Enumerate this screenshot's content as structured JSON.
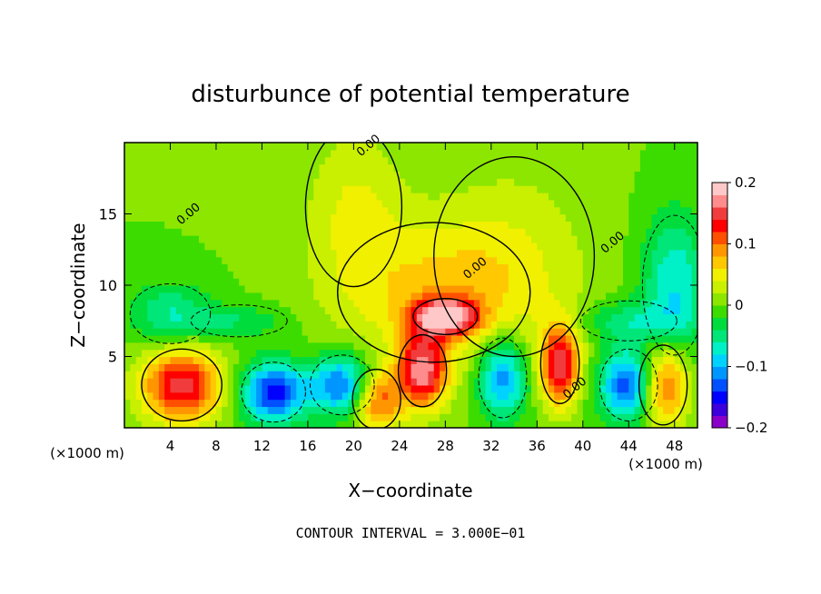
{
  "chart_data": {
    "type": "heatmap",
    "title": "disturbunce of potential temperature",
    "xlabel": "X−coordinate",
    "ylabel": "Z−coordinate",
    "x_unit": "(×1000 m)",
    "x_unit_right": "(×1000 m)",
    "x_ticks": [
      4,
      8,
      12,
      16,
      20,
      24,
      28,
      32,
      36,
      40,
      44,
      48
    ],
    "y_ticks": [
      5,
      10,
      15
    ],
    "xlim": [
      0,
      50
    ],
    "ylim": [
      0,
      20
    ],
    "colorbar": {
      "ticks": [
        0.2,
        0.1,
        0,
        -0.1,
        -0.2
      ],
      "tick_labels": [
        "0.2",
        "0.1",
        "0",
        "−0.1",
        "−0.2"
      ],
      "range": [
        -0.2,
        0.2
      ],
      "colors": [
        "#8a00c8",
        "#3c00dc",
        "#0000ff",
        "#0050ff",
        "#0096ff",
        "#00d2ff",
        "#00f0c8",
        "#00e678",
        "#00dc3c",
        "#3cdc00",
        "#8ce600",
        "#c8f000",
        "#f0f000",
        "#ffc800",
        "#ff9600",
        "#ff5000",
        "#ff0000",
        "#f03c3c",
        "#ff8c8c",
        "#ffc8c8"
      ]
    },
    "contour_labels": [
      {
        "text": "0.00",
        "x": 5.8,
        "z": 14.8
      },
      {
        "text": "0.00",
        "x": 30.8,
        "z": 11.0
      },
      {
        "text": "0.00",
        "x": 42.8,
        "z": 12.8
      },
      {
        "text": "0.00",
        "x": 39.5,
        "z": 2.6
      },
      {
        "text": "0.00",
        "x": 21.5,
        "z": 19.6
      }
    ],
    "field_features": [
      {
        "x": 28,
        "z": 7.8,
        "sx": 2.0,
        "sz": 0.9,
        "value": 0.17
      },
      {
        "x": 27,
        "z": 9.5,
        "sx": 6.0,
        "sz": 3.5,
        "value": 0.06
      },
      {
        "x": 20,
        "z": 15.5,
        "sx": 3.0,
        "sz": 4.0,
        "value": 0.04
      },
      {
        "x": 34,
        "z": 12.0,
        "sx": 5.0,
        "sz": 5.0,
        "value": 0.03
      },
      {
        "x": 48,
        "z": 10.0,
        "sx": 2.0,
        "sz": 3.5,
        "value": -0.08
      },
      {
        "x": 4,
        "z": 8.0,
        "sx": 2.5,
        "sz": 1.5,
        "value": -0.06
      },
      {
        "x": 44,
        "z": 7.5,
        "sx": 3.0,
        "sz": 1.0,
        "value": -0.05
      },
      {
        "x": 10,
        "z": 7.5,
        "sx": 3.0,
        "sz": 0.8,
        "value": -0.04
      },
      {
        "x": 5,
        "z": 3.0,
        "sx": 2.5,
        "sz": 1.8,
        "value": 0.15
      },
      {
        "x": 13,
        "z": 2.5,
        "sx": 2.0,
        "sz": 1.5,
        "value": -0.15
      },
      {
        "x": 26,
        "z": 4.0,
        "sx": 1.5,
        "sz": 1.8,
        "value": 0.16
      },
      {
        "x": 33,
        "z": 3.5,
        "sx": 1.5,
        "sz": 2.0,
        "value": -0.12
      },
      {
        "x": 38,
        "z": 4.5,
        "sx": 1.2,
        "sz": 2.0,
        "value": 0.15
      },
      {
        "x": 44,
        "z": 3.0,
        "sx": 1.8,
        "sz": 1.8,
        "value": -0.14
      },
      {
        "x": 47,
        "z": 3.0,
        "sx": 1.5,
        "sz": 2.0,
        "value": 0.13
      },
      {
        "x": 19,
        "z": 3.0,
        "sx": 2.0,
        "sz": 1.5,
        "value": -0.13
      },
      {
        "x": 22,
        "z": 2.0,
        "sx": 1.5,
        "sz": 1.5,
        "value": 0.12
      }
    ],
    "grid": false,
    "legend_placement": "right"
  },
  "footer": {
    "contour_interval": "CONTOUR INTERVAL = 3.000E−01"
  },
  "colors": {
    "background": "#00e650",
    "axes": "#000000"
  }
}
